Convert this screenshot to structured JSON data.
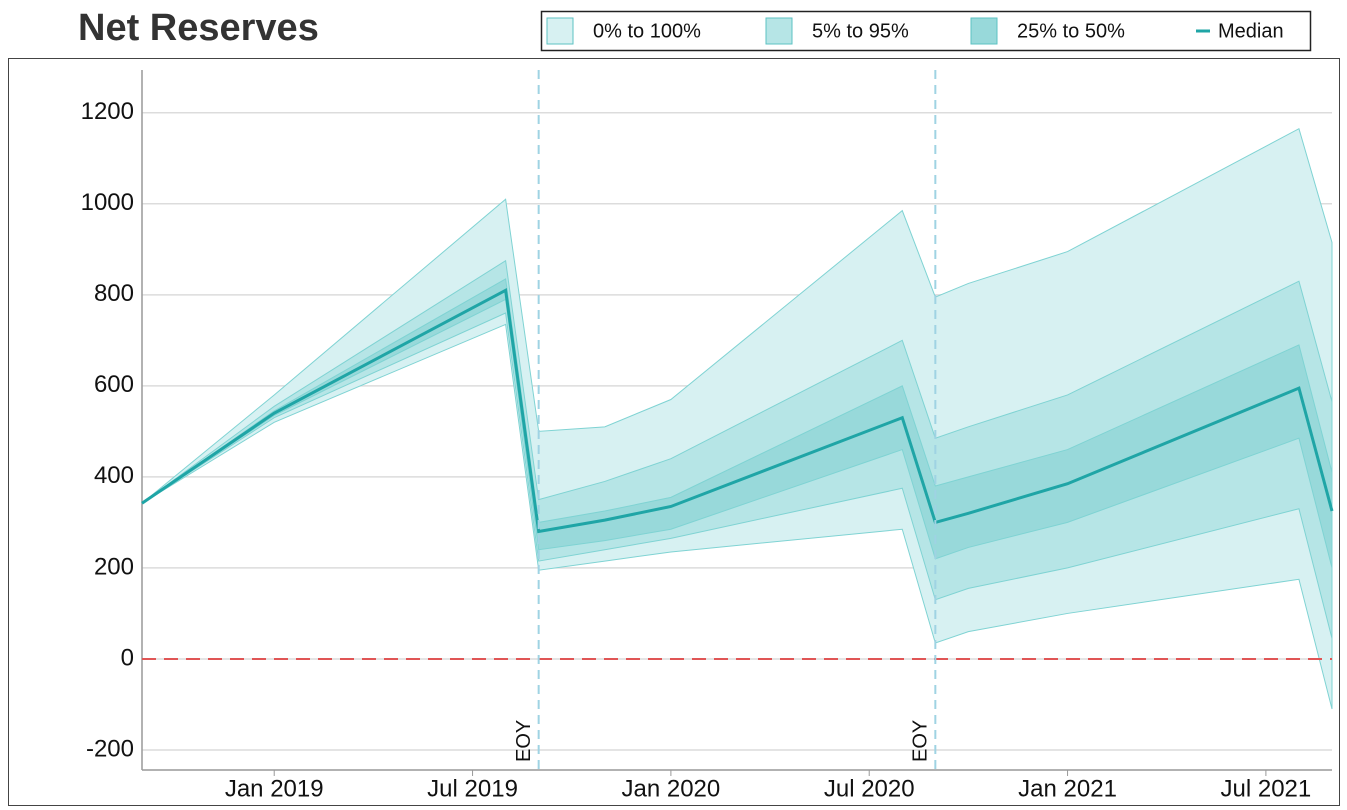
{
  "chart_data": {
    "type": "fan",
    "title": "Net Reserves",
    "x": [
      "2018-09",
      "2019-01",
      "2019-08",
      "2019-09",
      "2019-11",
      "2020-01",
      "2020-08",
      "2020-09",
      "2020-10",
      "2021-01",
      "2021-08",
      "2021-09"
    ],
    "bands": [
      {
        "name": "0% to 100%",
        "color": "#d7f1f2",
        "lower": [
          342,
          520,
          735,
          195,
          215,
          235,
          285,
          35,
          60,
          100,
          175,
          -110
        ],
        "upper": [
          342,
          580,
          1010,
          500,
          510,
          570,
          985,
          795,
          825,
          895,
          1165,
          915
        ]
      },
      {
        "name": "5% to 95%",
        "color": "#b6e5e6",
        "lower": [
          342,
          530,
          760,
          215,
          240,
          265,
          375,
          130,
          155,
          200,
          330,
          45
        ],
        "upper": [
          342,
          555,
          875,
          350,
          390,
          440,
          700,
          485,
          510,
          580,
          830,
          565
        ]
      },
      {
        "name": "25% to 50%",
        "color": "#98d9da",
        "lower": [
          342,
          535,
          790,
          240,
          260,
          285,
          460,
          220,
          245,
          300,
          485,
          200
        ],
        "upper": [
          342,
          545,
          835,
          300,
          325,
          355,
          600,
          380,
          400,
          460,
          690,
          410
        ]
      }
    ],
    "median": {
      "name": "Median",
      "color": "#1fa5a6",
      "values": [
        342,
        540,
        810,
        280,
        305,
        335,
        530,
        300,
        320,
        385,
        595,
        325
      ]
    },
    "xlim": [
      "2018-09",
      "2021-09"
    ],
    "xticks": [
      {
        "value": "2019-01",
        "label": "Jan 2019"
      },
      {
        "value": "2019-07",
        "label": "Jul 2019"
      },
      {
        "value": "2020-01",
        "label": "Jan 2020"
      },
      {
        "value": "2020-07",
        "label": "Jul 2020"
      },
      {
        "value": "2021-01",
        "label": "Jan 2021"
      },
      {
        "value": "2021-07",
        "label": "Jul 2021"
      }
    ],
    "ylim": [
      -244,
      1294
    ],
    "yticks": [
      -200,
      0,
      200,
      400,
      600,
      800,
      1000,
      1200
    ],
    "grid": true,
    "hline": {
      "value": 0,
      "color": "#e05555"
    },
    "annotations": [
      {
        "x": "2019-09",
        "label": "EOY"
      },
      {
        "x": "2020-09",
        "label": "EOY"
      }
    ],
    "annotation_color": "#9fd3e3"
  }
}
